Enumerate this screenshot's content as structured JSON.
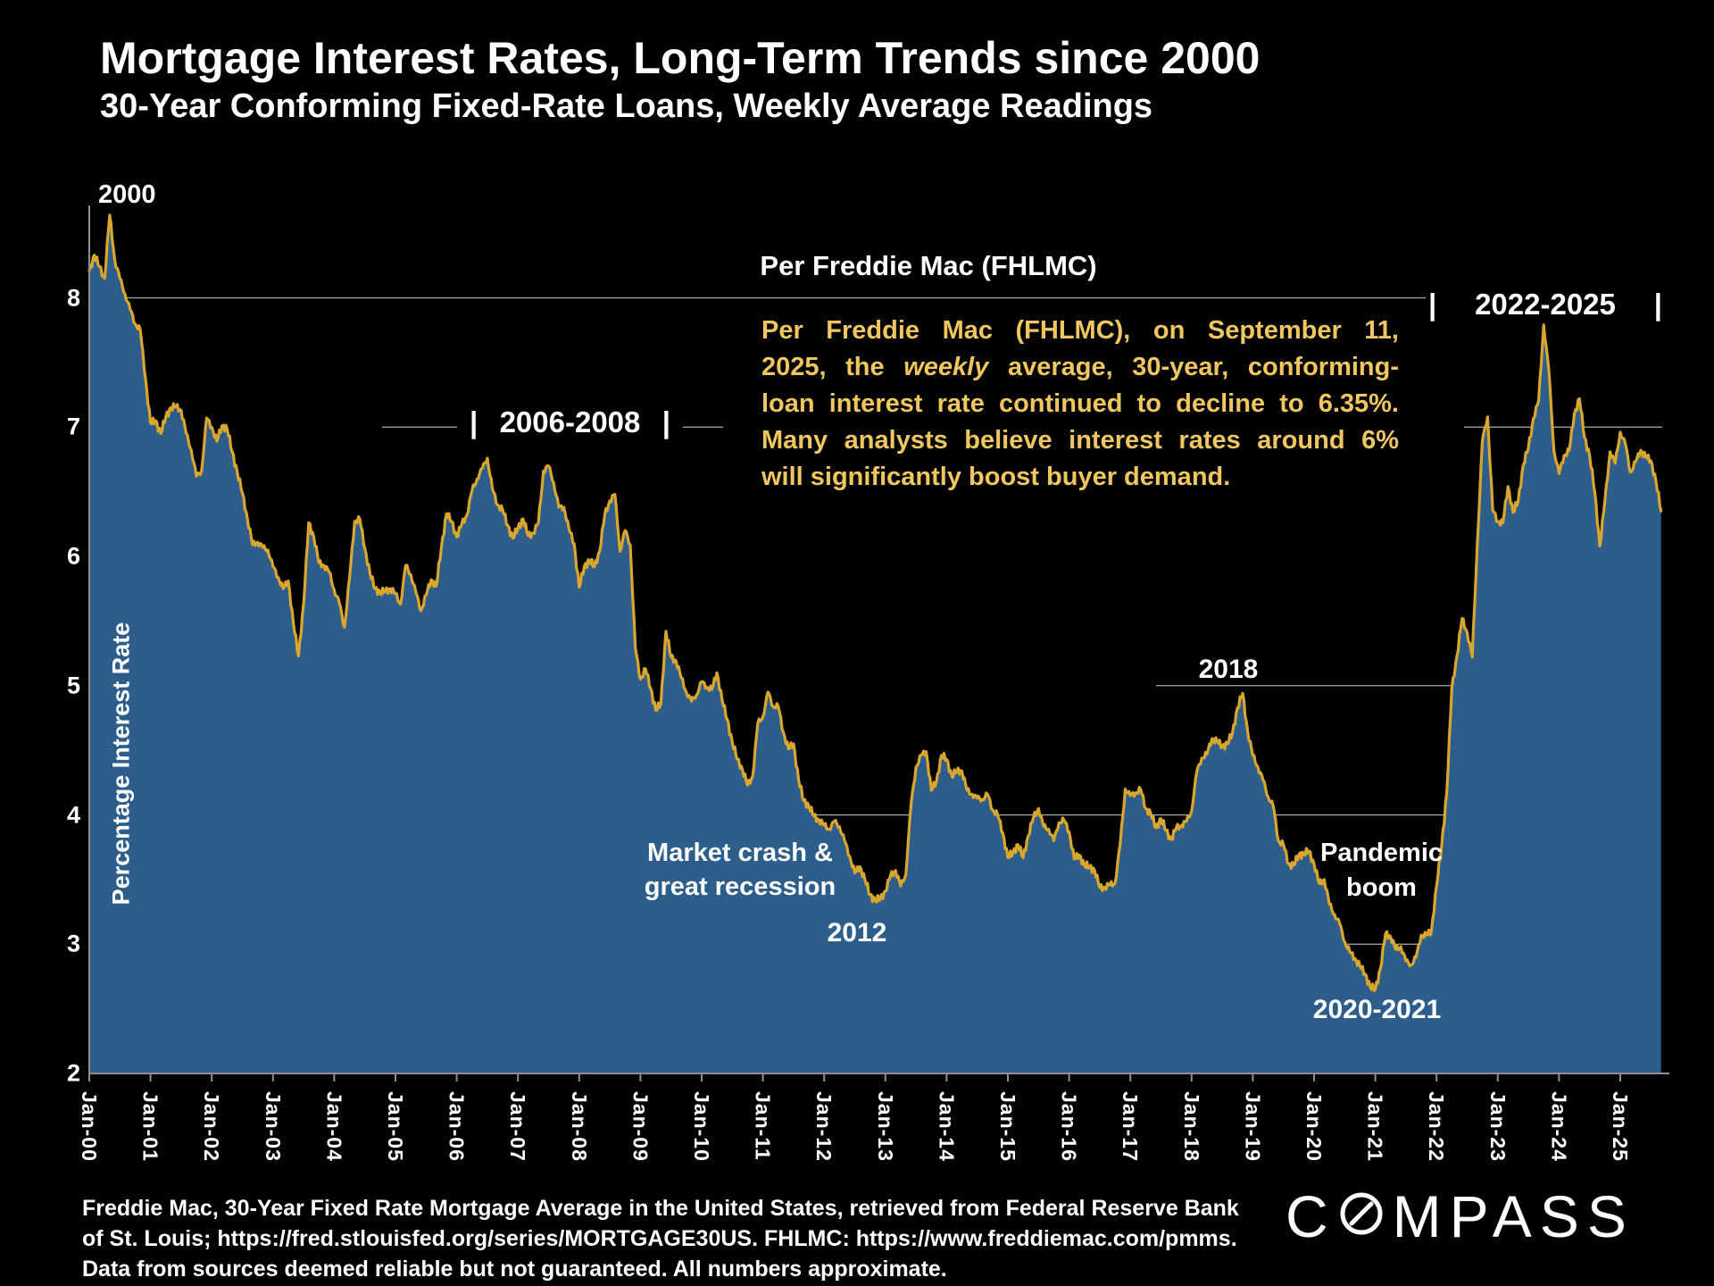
{
  "title": "Mortgage Interest Rates, Long-Term Trends since 2000",
  "subtitle": "30-Year Conforming Fixed-Rate Loans, Weekly Average Readings",
  "colors": {
    "background": "#000000",
    "area_fill": "#2D5E8B",
    "line_gold": "#D9A62E",
    "annotation_yellow": "#EFC75E",
    "axis_gray": "#8F8F8F",
    "gridline": "#D8D8D8",
    "text_white": "#FFFFFF"
  },
  "y_axis": {
    "title": "Percentage Interest Rate",
    "tick_labels": [
      "8",
      "7",
      "6",
      "5",
      "4",
      "3",
      "2"
    ]
  },
  "x_axis": {
    "labels": [
      "Jan-00",
      "Jan-01",
      "Jan-02",
      "Jan-03",
      "Jan-04",
      "Jan-05",
      "Jan-06",
      "Jan-07",
      "Jan-08",
      "Jan-09",
      "Jan-10",
      "Jan-11",
      "Jan-12",
      "Jan-13",
      "Jan-14",
      "Jan-15",
      "Jan-16",
      "Jan-17",
      "Jan-18",
      "Jan-19",
      "Jan-20",
      "Jan-21",
      "Jan-22",
      "Jan-23",
      "Jan-24",
      "Jan-25"
    ]
  },
  "annotations": {
    "start_year": "2000",
    "pipe": "|",
    "range_2006_2008": "2006-2008",
    "range_2022_2025": "2022-2025",
    "peak_2018": "2018",
    "crash_line1": "Market crash &",
    "crash_line2": "great recession",
    "low_2012": "2012",
    "pandemic_line1": "Pandemic",
    "pandemic_line2": "boom",
    "low_2020_2021": "2020-2021"
  },
  "callout": {
    "heading": "Per Freddie Mac (FHLMC)",
    "line1": "Per Freddie Mac (FHLMC), on September 11,",
    "line2_pre": "2025, the ",
    "line2_italic": "weekly",
    "line2_post": " average, 30-year, conforming-",
    "line3": "loan interest rate continued to decline to 6.35%.",
    "line4": "Many analysts believe interest rates around 6%",
    "line5": "will significantly boost buyer demand."
  },
  "footer": {
    "line1": "Freddie Mac, 30-Year Fixed Rate Mortgage Average in the United States, retrieved from Federal Reserve Bank",
    "line2": "of St. Louis; https://fred.stlouisfed.org/series/MORTGAGE30US. FHLMC: https://www.freddiemac.com/pmms.",
    "line3": "Data from sources deemed reliable but not guaranteed. All numbers approximate."
  },
  "logo": {
    "part1": "C",
    "part2": "MPASS"
  },
  "chart_data": {
    "type": "area",
    "title": "Mortgage Interest Rates, Long-Term Trends since 2000",
    "subtitle": "30-Year Conforming Fixed-Rate Loans, Weekly Average Readings",
    "ylabel": "Percentage Interest Rate",
    "ylim": [
      2,
      8.8
    ],
    "x_start_year": 2000,
    "frequency": "monthly",
    "x_end_label": "Sep-2025",
    "latest_reading": {
      "date": "September 11, 2025",
      "value": 6.35
    },
    "grid": "partial-horizontal",
    "legend": "none",
    "series": [
      {
        "name": "30-Year Fixed Rate Mortgage Average (weekly, %)",
        "values": [
          8.21,
          8.33,
          8.24,
          8.15,
          8.64,
          8.29,
          8.15,
          8.03,
          7.91,
          7.8,
          7.75,
          7.38,
          7.03,
          7.05,
          6.95,
          7.08,
          7.15,
          7.16,
          7.13,
          6.95,
          6.82,
          6.62,
          6.66,
          7.07,
          7.0,
          6.89,
          7.01,
          6.99,
          6.81,
          6.65,
          6.49,
          6.29,
          6.09,
          6.11,
          6.07,
          6.05,
          5.92,
          5.84,
          5.75,
          5.81,
          5.48,
          5.23,
          5.63,
          6.26,
          6.15,
          5.95,
          5.93,
          5.88,
          5.74,
          5.64,
          5.45,
          5.83,
          6.27,
          6.29,
          6.06,
          5.87,
          5.75,
          5.72,
          5.73,
          5.75,
          5.71,
          5.63,
          5.93,
          5.86,
          5.72,
          5.58,
          5.7,
          5.82,
          5.77,
          6.07,
          6.33,
          6.27,
          6.15,
          6.25,
          6.32,
          6.51,
          6.6,
          6.68,
          6.76,
          6.52,
          6.4,
          6.36,
          6.24,
          6.14,
          6.22,
          6.29,
          6.16,
          6.18,
          6.26,
          6.66,
          6.7,
          6.57,
          6.38,
          6.38,
          6.21,
          6.1,
          5.76,
          5.92,
          5.97,
          5.92,
          6.04,
          6.32,
          6.43,
          6.48,
          6.04,
          6.2,
          6.09,
          5.29,
          5.05,
          5.13,
          4.98,
          4.81,
          4.86,
          5.42,
          5.22,
          5.19,
          5.06,
          4.95,
          4.88,
          4.93,
          5.03,
          4.99,
          4.97,
          5.1,
          4.89,
          4.74,
          4.56,
          4.43,
          4.35,
          4.23,
          4.3,
          4.71,
          4.76,
          4.95,
          4.84,
          4.84,
          4.64,
          4.51,
          4.55,
          4.27,
          4.11,
          4.07,
          3.99,
          3.96,
          3.92,
          3.89,
          3.95,
          3.91,
          3.8,
          3.68,
          3.55,
          3.6,
          3.5,
          3.38,
          3.34,
          3.35,
          3.41,
          3.53,
          3.57,
          3.45,
          3.54,
          4.07,
          4.37,
          4.46,
          4.49,
          4.19,
          4.26,
          4.46,
          4.43,
          4.3,
          4.34,
          4.34,
          4.19,
          4.16,
          4.13,
          4.12,
          4.16,
          4.04,
          4.0,
          3.86,
          3.67,
          3.71,
          3.77,
          3.67,
          3.84,
          3.98,
          4.05,
          3.91,
          3.89,
          3.8,
          3.94,
          3.96,
          3.87,
          3.66,
          3.69,
          3.61,
          3.6,
          3.57,
          3.44,
          3.44,
          3.46,
          3.47,
          3.77,
          4.2,
          4.15,
          4.17,
          4.2,
          4.05,
          4.01,
          3.9,
          3.97,
          3.88,
          3.81,
          3.9,
          3.92,
          3.95,
          4.03,
          4.33,
          4.44,
          4.47,
          4.59,
          4.57,
          4.53,
          4.55,
          4.63,
          4.83,
          4.94,
          4.64,
          4.46,
          4.37,
          4.27,
          4.14,
          4.07,
          3.8,
          3.77,
          3.62,
          3.61,
          3.69,
          3.7,
          3.72,
          3.62,
          3.47,
          3.5,
          3.31,
          3.23,
          3.16,
          3.02,
          2.94,
          2.89,
          2.83,
          2.77,
          2.67,
          2.65,
          2.81,
          3.08,
          3.06,
          2.96,
          2.98,
          2.87,
          2.84,
          2.9,
          3.07,
          3.07,
          3.1,
          3.45,
          3.76,
          4.17,
          4.98,
          5.23,
          5.52,
          5.41,
          5.22,
          6.11,
          6.9,
          7.08,
          6.36,
          6.27,
          6.26,
          6.54,
          6.34,
          6.43,
          6.71,
          6.84,
          7.07,
          7.2,
          7.79,
          7.44,
          6.82,
          6.64,
          6.78,
          6.82,
          7.1,
          7.22,
          6.92,
          6.78,
          6.5,
          6.08,
          6.43,
          6.81,
          6.72,
          6.96,
          6.87,
          6.65,
          6.73,
          6.82,
          6.77,
          6.74,
          6.58,
          6.35
        ]
      }
    ]
  }
}
